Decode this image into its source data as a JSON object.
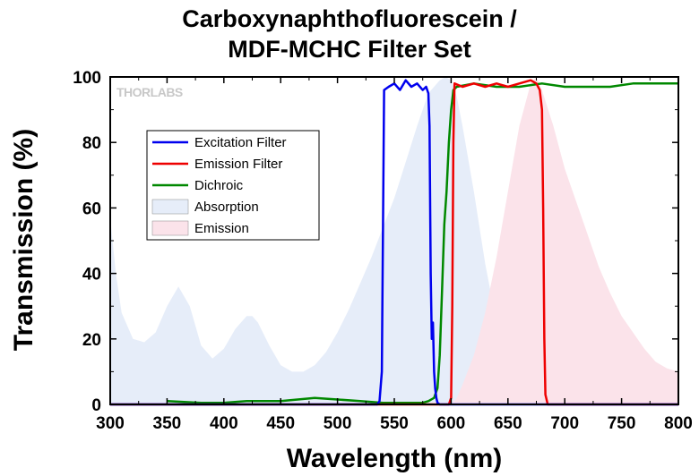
{
  "chart_data": {
    "type": "line",
    "title_line1": "Carboxynaphthofluorescein /",
    "title_line2": "MDF-MCHC Filter Set",
    "xlabel": "Wavelength (nm)",
    "ylabel": "Transmission (%)",
    "xlim": [
      300,
      800
    ],
    "ylim": [
      0,
      100
    ],
    "xticks": [
      300,
      350,
      400,
      450,
      500,
      550,
      600,
      650,
      700,
      750,
      800
    ],
    "yticks": [
      0,
      20,
      40,
      60,
      80,
      100
    ],
    "grid": false,
    "legend_position": "upper-left",
    "watermark": "THORLABS",
    "series": [
      {
        "name": "Excitation Filter",
        "kind": "line",
        "color": "#0000ee",
        "x": [
          300,
          535,
          537,
          539,
          541,
          545,
          550,
          555,
          560,
          565,
          570,
          575,
          578,
          580,
          581,
          582,
          583,
          584,
          585,
          586,
          587,
          588,
          590,
          600,
          800
        ],
        "y": [
          0,
          0,
          1,
          10,
          96,
          97,
          98,
          96,
          99,
          97,
          98,
          96,
          97,
          95,
          85,
          40,
          20,
          25,
          10,
          5,
          2,
          0.5,
          0,
          0,
          0
        ]
      },
      {
        "name": "Emission Filter",
        "kind": "line",
        "color": "#ee0000",
        "x": [
          300,
          598,
          600,
          601,
          602,
          603,
          610,
          620,
          630,
          640,
          650,
          660,
          670,
          675,
          678,
          680,
          681,
          682,
          683,
          685,
          800
        ],
        "y": [
          0,
          0,
          2,
          30,
          80,
          98,
          97,
          98,
          97,
          98,
          97,
          98,
          99,
          98,
          96,
          90,
          60,
          20,
          3,
          0,
          0
        ],
        "note": ""
      },
      {
        "name": "Dichroic",
        "kind": "line",
        "color": "#008800",
        "x": [
          350,
          380,
          400,
          420,
          450,
          480,
          500,
          520,
          540,
          560,
          575,
          580,
          585,
          588,
          590,
          592,
          594,
          596,
          598,
          600,
          601,
          602,
          605,
          620,
          640,
          660,
          680,
          700,
          720,
          740,
          760,
          780,
          800
        ],
        "y": [
          1,
          0.5,
          0.5,
          1,
          1,
          2,
          1.5,
          1,
          0.5,
          0.5,
          0.5,
          1,
          2,
          5,
          15,
          35,
          55,
          65,
          80,
          90,
          93,
          96,
          97,
          98,
          97,
          97,
          98,
          97,
          97,
          97,
          98,
          98,
          98
        ]
      },
      {
        "name": "Absorption",
        "kind": "area",
        "color": "#e6edf9",
        "x": [
          300,
          305,
          310,
          320,
          330,
          340,
          350,
          360,
          370,
          380,
          390,
          400,
          410,
          420,
          425,
          430,
          440,
          450,
          460,
          470,
          480,
          490,
          500,
          510,
          520,
          530,
          540,
          550,
          560,
          570,
          580,
          590,
          595,
          600,
          605,
          610,
          620,
          630,
          640,
          650,
          660,
          670,
          680,
          800
        ],
        "y": [
          57,
          40,
          28,
          20,
          19,
          22,
          30,
          36,
          30,
          18,
          14,
          17,
          23,
          27,
          27,
          25,
          18,
          12,
          10,
          10,
          12,
          16,
          22,
          29,
          37,
          45,
          54,
          63,
          74,
          85,
          95,
          99,
          100,
          99,
          94,
          85,
          65,
          43,
          25,
          12,
          5,
          2,
          0,
          0
        ]
      },
      {
        "name": "Emission",
        "kind": "area",
        "color": "#fbe3ea",
        "x": [
          600,
          605,
          610,
          620,
          630,
          640,
          650,
          660,
          670,
          675,
          680,
          690,
          700,
          710,
          720,
          730,
          740,
          750,
          760,
          770,
          780,
          790,
          800
        ],
        "y": [
          0,
          2,
          6,
          15,
          28,
          45,
          65,
          85,
          98,
          100,
          96,
          85,
          72,
          62,
          52,
          42,
          34,
          27,
          22,
          17,
          13,
          11,
          10
        ]
      }
    ]
  }
}
